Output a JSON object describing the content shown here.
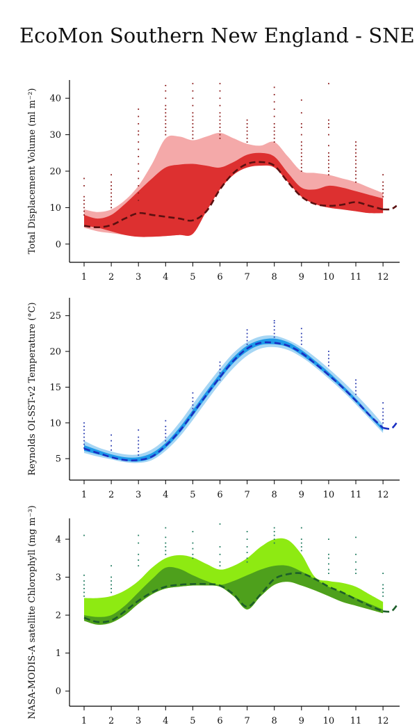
{
  "page": {
    "title": "EcoMon Southern New England - SNE"
  },
  "chart_data": [
    {
      "type": "area",
      "ylabel": "Total Displacement Volume (ml m⁻²)",
      "ylim": [
        -5,
        45
      ],
      "yticks": [
        0,
        10,
        20,
        30,
        40
      ],
      "xlim": [
        0.6,
        12.6
      ],
      "xticks": [
        "1",
        "2",
        "3",
        "4",
        "5",
        "6",
        "7",
        "8",
        "9",
        "10",
        "11",
        "12"
      ],
      "colors": {
        "outer": "#f4a9a9",
        "inner": "#dd3030",
        "median": "#5a1010",
        "points": "#8b1a1a"
      },
      "x": [
        1,
        1.5,
        2,
        2.5,
        3,
        3.5,
        4,
        4.5,
        5,
        5.5,
        6,
        6.5,
        7,
        7.5,
        8,
        8.5,
        9,
        9.5,
        10,
        10.5,
        11,
        11.5,
        12
      ],
      "series": [
        {
          "role": "outer_upper",
          "values": [
            9.5,
            8.8,
            9.5,
            12,
            16,
            22,
            29,
            29.5,
            28.5,
            29.5,
            30.5,
            29,
            27.5,
            27,
            28,
            24,
            20,
            19.5,
            19,
            18,
            17,
            15.5,
            14
          ]
        },
        {
          "role": "outer_lower",
          "values": [
            4.5,
            3.5,
            3,
            2.5,
            2,
            2,
            2.2,
            2.5,
            2.8,
            9,
            15,
            19,
            21,
            21.5,
            21,
            17,
            13,
            11,
            10,
            9.5,
            9,
            8.5,
            8.5
          ]
        },
        {
          "role": "inner_upper",
          "values": [
            8,
            7,
            8,
            11,
            14.5,
            18,
            21,
            21.8,
            22,
            21.5,
            21,
            22.5,
            24.5,
            25,
            24,
            19.5,
            15.5,
            15,
            16,
            15.5,
            14.5,
            13.5,
            12.5
          ]
        },
        {
          "role": "inner_lower",
          "values": [
            5,
            4.5,
            3.5,
            2.5,
            2,
            2,
            2.2,
            2.5,
            2.8,
            9,
            15,
            19,
            21,
            21.5,
            21,
            17,
            13,
            11,
            10,
            9.5,
            9,
            8.5,
            8.5
          ]
        },
        {
          "role": "median",
          "values": [
            5,
            4.6,
            5.2,
            7,
            8.5,
            8,
            7.5,
            7,
            6.5,
            9,
            15,
            19.5,
            22,
            22.5,
            21.5,
            17,
            13,
            11,
            10.5,
            10.8,
            11.5,
            10.5,
            9.5
          ]
        }
      ],
      "median_extension": {
        "x": [
          12,
          12.3,
          12.5
        ],
        "values": [
          9.5,
          9.6,
          10.5
        ]
      },
      "points": [
        {
          "x": 1,
          "values": [
            8,
            9,
            10,
            11,
            12,
            13,
            16,
            18
          ]
        },
        {
          "x": 2,
          "values": [
            10,
            11,
            12,
            13,
            14,
            15,
            16,
            17,
            19
          ]
        },
        {
          "x": 3,
          "values": [
            12,
            14,
            16,
            18,
            20,
            22,
            24,
            26,
            28,
            30,
            31,
            33,
            35,
            37
          ]
        },
        {
          "x": 4,
          "values": [
            30,
            31,
            32,
            33,
            34,
            35,
            36,
            37,
            38,
            40,
            42,
            43.5
          ]
        },
        {
          "x": 5,
          "values": [
            29,
            30,
            31,
            32,
            33,
            34,
            35,
            36,
            38,
            40,
            42,
            44
          ]
        },
        {
          "x": 6,
          "values": [
            29,
            30,
            31,
            32,
            33,
            34,
            35,
            36,
            38,
            40,
            42,
            44
          ]
        },
        {
          "x": 7,
          "values": [
            28,
            29,
            30,
            31,
            32,
            33,
            34
          ]
        },
        {
          "x": 8,
          "values": [
            28,
            29,
            30,
            31,
            32,
            33,
            35,
            37,
            39,
            41,
            43
          ]
        },
        {
          "x": 9,
          "values": [
            20,
            21,
            22,
            23,
            24,
            25,
            26,
            27,
            28,
            30,
            32,
            33,
            36,
            39.5
          ]
        },
        {
          "x": 10,
          "values": [
            19,
            20,
            21,
            22,
            23,
            24,
            25,
            27,
            30,
            32,
            33,
            34,
            44
          ]
        },
        {
          "x": 11,
          "values": [
            17,
            18,
            19,
            20,
            21,
            22,
            23,
            24,
            25,
            26,
            27,
            28
          ]
        },
        {
          "x": 12,
          "values": [
            13,
            14,
            15,
            16,
            17,
            19
          ]
        }
      ]
    },
    {
      "type": "area",
      "ylabel": "Reynolds OI-SST-v2 Temperature (°C)",
      "ylim": [
        2,
        27.5
      ],
      "yticks": [
        5,
        10,
        15,
        20,
        25
      ],
      "xlim": [
        0.6,
        12.6
      ],
      "xticks": [
        "1",
        "2",
        "3",
        "4",
        "5",
        "6",
        "7",
        "8",
        "9",
        "10",
        "11",
        "12"
      ],
      "colors": {
        "outer": "#a6d6f4",
        "inner": "#1f9ae8",
        "median": "#1a2fc2",
        "points": "#2a3cb0"
      },
      "x": [
        1,
        1.5,
        2,
        2.5,
        3,
        3.5,
        4,
        4.5,
        5,
        5.5,
        6,
        6.5,
        7,
        7.5,
        8,
        8.5,
        9,
        9.5,
        10,
        10.5,
        11,
        11.5,
        12
      ],
      "series": [
        {
          "role": "outer_upper",
          "values": [
            7.5,
            6.6,
            6.0,
            5.6,
            5.6,
            6.3,
            7.8,
            10.0,
            12.6,
            15.2,
            17.6,
            19.8,
            21.3,
            22.1,
            22.2,
            21.6,
            20.6,
            19.2,
            17.6,
            15.9,
            14.0,
            12.0,
            9.8
          ]
        },
        {
          "role": "outer_lower",
          "values": [
            5.8,
            5.3,
            4.9,
            4.5,
            4.4,
            4.8,
            6.1,
            8.0,
            10.4,
            13.0,
            15.5,
            17.7,
            19.4,
            20.4,
            20.6,
            20.2,
            19.2,
            17.8,
            16.2,
            14.5,
            12.6,
            10.6,
            8.6
          ]
        },
        {
          "role": "inner_upper",
          "values": [
            6.9,
            6.2,
            5.6,
            5.2,
            5.2,
            5.8,
            7.2,
            9.3,
            11.8,
            14.4,
            16.9,
            19.2,
            20.8,
            21.6,
            21.8,
            21.3,
            20.2,
            18.7,
            17.1,
            15.3,
            13.4,
            11.3,
            9.3
          ]
        },
        {
          "role": "inner_lower",
          "values": [
            6.1,
            5.6,
            5.1,
            4.7,
            4.6,
            5.1,
            6.5,
            8.5,
            11.0,
            13.6,
            16.1,
            18.4,
            20.0,
            20.9,
            21.0,
            20.6,
            19.5,
            18.1,
            16.5,
            14.8,
            12.9,
            10.9,
            8.9
          ]
        },
        {
          "role": "median",
          "values": [
            6.4,
            5.8,
            5.2,
            4.8,
            4.8,
            5.3,
            6.8,
            8.8,
            11.3,
            13.9,
            16.4,
            18.7,
            20.4,
            21.2,
            21.2,
            20.8,
            19.8,
            18.3,
            16.7,
            15.0,
            13.1,
            11.1,
            9.3
          ]
        }
      ],
      "median_extension": {
        "x": [
          12,
          12.3,
          12.5
        ],
        "values": [
          9.3,
          9.2,
          10.0
        ]
      },
      "points": [
        {
          "x": 1,
          "values": [
            6.5,
            7,
            7.5,
            8,
            8.5,
            9,
            9.5,
            10
          ]
        },
        {
          "x": 2,
          "values": [
            6.2,
            6.8,
            7.5,
            8.3
          ]
        },
        {
          "x": 3,
          "values": [
            5.5,
            6,
            6.5,
            7,
            7.5,
            8,
            9
          ]
        },
        {
          "x": 4,
          "values": [
            7.5,
            8,
            8.5,
            9,
            9.5,
            10.3
          ]
        },
        {
          "x": 5,
          "values": [
            11.5,
            12,
            12.5,
            13,
            13.5,
            14.2
          ]
        },
        {
          "x": 6,
          "values": [
            16,
            16.5,
            17,
            17.5,
            18,
            18.5
          ]
        },
        {
          "x": 7,
          "values": [
            21,
            21.5,
            22,
            22.5,
            23
          ]
        },
        {
          "x": 8,
          "values": [
            22,
            22.5,
            23,
            23.5,
            24,
            24.3
          ]
        },
        {
          "x": 9,
          "values": [
            21,
            21.5,
            22,
            22.5,
            23.2
          ]
        },
        {
          "x": 10,
          "values": [
            18,
            18.5,
            19,
            19.5,
            20
          ]
        },
        {
          "x": 11,
          "values": [
            14,
            14.5,
            15,
            15.5,
            16
          ]
        },
        {
          "x": 12,
          "values": [
            10,
            10.5,
            11,
            11.5,
            12,
            12.8
          ]
        }
      ]
    },
    {
      "type": "area",
      "ylabel": "NASA-MODIS-A satellite Chlorophyll (mg m⁻³)",
      "ylim": [
        -0.4,
        4.55
      ],
      "yticks": [
        0,
        1,
        2,
        3,
        4
      ],
      "xlim": [
        0.6,
        12.6
      ],
      "xticks": [
        "1",
        "2",
        "3",
        "4",
        "5",
        "6",
        "7",
        "8",
        "9",
        "10",
        "11",
        "12"
      ],
      "colors": {
        "outer": "#8eea12",
        "inner": "#4ea01c",
        "median": "#1d5e2a",
        "points": "#1e7a5e"
      },
      "x": [
        1,
        1.5,
        2,
        2.5,
        3,
        3.5,
        4,
        4.5,
        5,
        5.5,
        6,
        6.5,
        7,
        7.5,
        8,
        8.5,
        9,
        9.5,
        10,
        10.5,
        11,
        11.5,
        12
      ],
      "series": [
        {
          "role": "outer_upper",
          "values": [
            2.45,
            2.45,
            2.5,
            2.65,
            2.9,
            3.25,
            3.5,
            3.58,
            3.52,
            3.35,
            3.2,
            3.3,
            3.5,
            3.8,
            4.0,
            3.98,
            3.6,
            3.0,
            2.9,
            2.85,
            2.75,
            2.55,
            2.35
          ]
        },
        {
          "role": "outer_lower",
          "values": [
            1.85,
            1.75,
            1.8,
            2.0,
            2.3,
            2.55,
            2.7,
            2.75,
            2.78,
            2.78,
            2.75,
            2.5,
            2.15,
            2.5,
            2.8,
            2.88,
            2.78,
            2.65,
            2.5,
            2.35,
            2.25,
            2.15,
            2.05
          ]
        },
        {
          "role": "inner_upper",
          "values": [
            2.0,
            1.95,
            2.0,
            2.25,
            2.6,
            2.95,
            3.25,
            3.22,
            3.05,
            2.9,
            2.8,
            2.9,
            3.05,
            3.2,
            3.3,
            3.3,
            3.15,
            2.95,
            2.75,
            2.6,
            2.45,
            2.3,
            2.15
          ]
        },
        {
          "role": "inner_lower",
          "values": [
            1.85,
            1.75,
            1.8,
            2.0,
            2.3,
            2.55,
            2.7,
            2.75,
            2.78,
            2.78,
            2.75,
            2.5,
            2.15,
            2.5,
            2.8,
            2.88,
            2.78,
            2.65,
            2.5,
            2.35,
            2.25,
            2.15,
            2.05
          ]
        },
        {
          "role": "median",
          "values": [
            1.93,
            1.82,
            1.86,
            2.1,
            2.38,
            2.6,
            2.75,
            2.8,
            2.82,
            2.82,
            2.78,
            2.55,
            2.22,
            2.55,
            2.95,
            3.08,
            3.1,
            2.95,
            2.75,
            2.6,
            2.42,
            2.25,
            2.1
          ]
        }
      ],
      "median_extension": {
        "x": [
          12,
          12.3,
          12.5
        ],
        "values": [
          2.1,
          2.1,
          2.25
        ]
      },
      "points": [
        {
          "x": 1,
          "values": [
            2.5,
            2.6,
            2.7,
            2.8,
            2.9,
            3.05,
            4.1
          ]
        },
        {
          "x": 2,
          "values": [
            2.6,
            2.7,
            2.8,
            2.9,
            3.0,
            3.3
          ]
        },
        {
          "x": 3,
          "values": [
            3.3,
            3.45,
            3.6,
            3.9,
            4.1
          ]
        },
        {
          "x": 4,
          "values": [
            3.6,
            3.7,
            3.8,
            3.9,
            4.05,
            4.3
          ]
        },
        {
          "x": 5,
          "values": [
            3.5,
            3.6,
            3.75,
            3.9,
            4.2
          ]
        },
        {
          "x": 6,
          "values": [
            3.3,
            3.4,
            3.6,
            3.8,
            4.4
          ]
        },
        {
          "x": 7,
          "values": [
            3.4,
            3.5,
            3.65,
            3.8,
            4.0,
            4.2
          ]
        },
        {
          "x": 8,
          "values": [
            3.9,
            4.0,
            4.1,
            4.2,
            4.3
          ]
        },
        {
          "x": 9,
          "values": [
            3.7,
            3.8,
            3.9,
            4.0,
            4.3
          ]
        },
        {
          "x": 10,
          "values": [
            3.1,
            3.2,
            3.35,
            3.5,
            3.6,
            4.0
          ]
        },
        {
          "x": 11,
          "values": [
            3.1,
            3.2,
            3.4,
            3.6,
            4.05
          ]
        },
        {
          "x": 12,
          "values": [
            2.5,
            2.6,
            2.7,
            2.8,
            3.1
          ]
        }
      ]
    }
  ]
}
